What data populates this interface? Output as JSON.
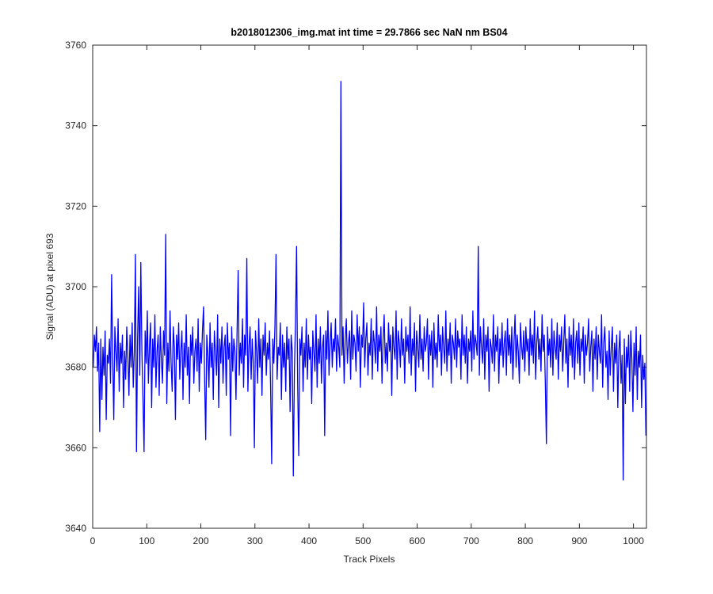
{
  "chart_data": {
    "type": "line",
    "title": "b2018012306_img.mat int time = 29.7866 sec  NaN nm BS04",
    "x_label": "Track Pixels",
    "y_label": "Signal (ADU) at pixel 693",
    "xlim": [
      0,
      1024
    ],
    "ylim": [
      3640,
      3760
    ],
    "xticks": [
      0,
      100,
      200,
      300,
      400,
      500,
      600,
      700,
      800,
      900,
      1000
    ],
    "yticks": [
      3640,
      3660,
      3680,
      3700,
      3720,
      3740,
      3760
    ],
    "grid": false,
    "x": [
      1,
      3,
      5,
      7,
      9,
      11,
      13,
      15,
      17,
      19,
      21,
      23,
      25,
      27,
      29,
      31,
      33,
      35,
      37,
      39,
      41,
      43,
      45,
      47,
      49,
      51,
      53,
      55,
      57,
      59,
      61,
      63,
      65,
      67,
      69,
      71,
      73,
      75,
      77,
      79,
      81,
      83,
      85,
      87,
      89,
      91,
      93,
      95,
      97,
      99,
      101,
      103,
      105,
      107,
      109,
      111,
      113,
      115,
      117,
      119,
      121,
      123,
      125,
      127,
      129,
      131,
      133,
      135,
      137,
      139,
      141,
      143,
      145,
      147,
      149,
      151,
      153,
      155,
      157,
      159,
      161,
      163,
      165,
      167,
      169,
      171,
      173,
      175,
      177,
      179,
      181,
      183,
      185,
      187,
      189,
      191,
      193,
      195,
      197,
      199,
      201,
      203,
      205,
      207,
      209,
      211,
      213,
      215,
      217,
      219,
      221,
      223,
      225,
      227,
      229,
      231,
      233,
      235,
      237,
      239,
      241,
      243,
      245,
      247,
      249,
      251,
      253,
      255,
      257,
      259,
      261,
      263,
      265,
      267,
      269,
      271,
      273,
      275,
      277,
      279,
      281,
      283,
      285,
      287,
      289,
      291,
      293,
      295,
      297,
      299,
      301,
      303,
      305,
      307,
      309,
      311,
      313,
      315,
      317,
      319,
      321,
      323,
      325,
      327,
      329,
      331,
      333,
      335,
      337,
      339,
      341,
      343,
      345,
      347,
      349,
      351,
      353,
      355,
      357,
      359,
      361,
      363,
      365,
      367,
      369,
      371,
      373,
      375,
      377,
      379,
      381,
      383,
      385,
      387,
      389,
      391,
      393,
      395,
      397,
      399,
      401,
      403,
      405,
      407,
      409,
      411,
      413,
      415,
      417,
      419,
      421,
      423,
      425,
      427,
      429,
      431,
      433,
      435,
      437,
      439,
      441,
      443,
      445,
      447,
      449,
      451,
      453,
      455,
      457,
      459,
      461,
      463,
      465,
      467,
      469,
      471,
      473,
      475,
      477,
      479,
      481,
      483,
      485,
      487,
      489,
      491,
      493,
      495,
      497,
      499,
      501,
      503,
      505,
      507,
      509,
      511,
      513,
      515,
      517,
      519,
      521,
      523,
      525,
      527,
      529,
      531,
      533,
      535,
      537,
      539,
      541,
      543,
      545,
      547,
      549,
      551,
      553,
      555,
      557,
      559,
      561,
      563,
      565,
      567,
      569,
      571,
      573,
      575,
      577,
      579,
      581,
      583,
      585,
      587,
      589,
      591,
      593,
      595,
      597,
      599,
      601,
      603,
      605,
      607,
      609,
      611,
      613,
      615,
      617,
      619,
      621,
      623,
      625,
      627,
      629,
      631,
      633,
      635,
      637,
      639,
      641,
      643,
      645,
      647,
      649,
      651,
      653,
      655,
      657,
      659,
      661,
      663,
      665,
      667,
      669,
      671,
      673,
      675,
      677,
      679,
      681,
      683,
      685,
      687,
      689,
      691,
      693,
      695,
      697,
      699,
      701,
      703,
      705,
      707,
      709,
      711,
      713,
      715,
      717,
      719,
      721,
      723,
      725,
      727,
      729,
      731,
      733,
      735,
      737,
      739,
      741,
      743,
      745,
      747,
      749,
      751,
      753,
      755,
      757,
      759,
      761,
      763,
      765,
      767,
      769,
      771,
      773,
      775,
      777,
      779,
      781,
      783,
      785,
      787,
      789,
      791,
      793,
      795,
      797,
      799,
      801,
      803,
      805,
      807,
      809,
      811,
      813,
      815,
      817,
      819,
      821,
      823,
      825,
      827,
      829,
      831,
      833,
      835,
      837,
      839,
      841,
      843,
      845,
      847,
      849,
      851,
      853,
      855,
      857,
      859,
      861,
      863,
      865,
      867,
      869,
      871,
      873,
      875,
      877,
      879,
      881,
      883,
      885,
      887,
      889,
      891,
      893,
      895,
      897,
      899,
      901,
      903,
      905,
      907,
      909,
      911,
      913,
      915,
      917,
      919,
      921,
      923,
      925,
      927,
      929,
      931,
      933,
      935,
      937,
      939,
      941,
      943,
      945,
      947,
      949,
      951,
      953,
      955,
      957,
      959,
      961,
      963,
      965,
      967,
      969,
      971,
      973,
      975,
      977,
      979,
      981,
      983,
      985,
      987,
      989,
      991,
      993,
      995,
      997,
      999,
      1001,
      1003,
      1005,
      1007,
      1009,
      1011,
      1013,
      1015,
      1017,
      1019,
      1021,
      1023
    ],
    "series": [
      {
        "color": "#0000ff",
        "values": [
          3680,
          3688,
          3684,
          3690,
          3679,
          3686,
          3664,
          3687,
          3672,
          3685,
          3678,
          3689,
          3667,
          3683,
          3681,
          3687,
          3676,
          3703,
          3682,
          3667,
          3690,
          3684,
          3679,
          3692,
          3674,
          3686,
          3681,
          3688,
          3670,
          3684,
          3677,
          3690,
          3683,
          3673,
          3688,
          3680,
          3691,
          3675,
          3684,
          3708,
          3659,
          3687,
          3700,
          3678,
          3706,
          3684,
          3672,
          3659,
          3689,
          3681,
          3694,
          3676,
          3685,
          3691,
          3670,
          3687,
          3680,
          3693,
          3675,
          3684,
          3688,
          3673,
          3690,
          3682,
          3676,
          3689,
          3683,
          3713,
          3671,
          3686,
          3679,
          3694,
          3681,
          3674,
          3690,
          3685,
          3667,
          3688,
          3682,
          3691,
          3677,
          3684,
          3689,
          3672,
          3686,
          3680,
          3693,
          3678,
          3685,
          3671,
          3688,
          3683,
          3690,
          3676,
          3684,
          3687,
          3679,
          3692,
          3674,
          3686,
          3681,
          3689,
          3695,
          3677,
          3662,
          3688,
          3683,
          3675,
          3691,
          3680,
          3686,
          3672,
          3689,
          3684,
          3678,
          3693,
          3670,
          3687,
          3681,
          3690,
          3676,
          3685,
          3688,
          3673,
          3691,
          3682,
          3686,
          3663,
          3690,
          3679,
          3687,
          3684,
          3672,
          3689,
          3704,
          3678,
          3686,
          3681,
          3692,
          3675,
          3688,
          3683,
          3707,
          3674,
          3685,
          3690,
          3677,
          3687,
          3681,
          3660,
          3689,
          3684,
          3676,
          3692,
          3680,
          3687,
          3673,
          3688,
          3683,
          3691,
          3678,
          3686,
          3682,
          3689,
          3675,
          3656,
          3687,
          3681,
          3690,
          3708,
          3677,
          3685,
          3683,
          3691,
          3672,
          3688,
          3680,
          3686,
          3674,
          3690,
          3682,
          3687,
          3669,
          3688,
          3684,
          3653,
          3679,
          3691,
          3710,
          3676,
          3658,
          3687,
          3683,
          3690,
          3674,
          3686,
          3680,
          3692,
          3677,
          3688,
          3682,
          3685,
          3671,
          3689,
          3684,
          3679,
          3693,
          3675,
          3687,
          3681,
          3690,
          3676,
          3685,
          3688,
          3663,
          3689,
          3682,
          3694,
          3678,
          3686,
          3691,
          3680,
          3687,
          3684,
          3692,
          3679,
          3688,
          3685,
          3680,
          3751,
          3683,
          3690,
          3676,
          3687,
          3692,
          3681,
          3686,
          3689,
          3677,
          3694,
          3682,
          3688,
          3686,
          3679,
          3693,
          3684,
          3690,
          3675,
          3688,
          3685,
          3696,
          3680,
          3687,
          3691,
          3678,
          3686,
          3683,
          3692,
          3677,
          3689,
          3686,
          3681,
          3695,
          3679,
          3688,
          3684,
          3690,
          3676,
          3687,
          3693,
          3681,
          3686,
          3679,
          3691,
          3684,
          3688,
          3673,
          3690,
          3685,
          3682,
          3694,
          3677,
          3689,
          3686,
          3680,
          3692,
          3683,
          3687,
          3676,
          3690,
          3684,
          3688,
          3681,
          3695,
          3678,
          3687,
          3683,
          3691,
          3674,
          3689,
          3685,
          3680,
          3693,
          3682,
          3687,
          3679,
          3690,
          3684,
          3686,
          3692,
          3677,
          3688,
          3683,
          3689,
          3675,
          3691,
          3682,
          3686,
          3680,
          3693,
          3684,
          3688,
          3678,
          3690,
          3685,
          3681,
          3694,
          3679,
          3687,
          3683,
          3691,
          3676,
          3688,
          3686,
          3682,
          3692,
          3680,
          3689,
          3685,
          3687,
          3677,
          3693,
          3683,
          3688,
          3681,
          3690,
          3676,
          3687,
          3684,
          3689,
          3679,
          3694,
          3682,
          3688,
          3686,
          3683,
          3710,
          3678,
          3690,
          3685,
          3681,
          3692,
          3677,
          3688,
          3684,
          3690,
          3674,
          3687,
          3685,
          3681,
          3693,
          3679,
          3688,
          3684,
          3690,
          3676,
          3687,
          3683,
          3691,
          3680,
          3686,
          3689,
          3678,
          3692,
          3683,
          3688,
          3681,
          3690,
          3677,
          3686,
          3693,
          3680,
          3688,
          3684,
          3676,
          3691,
          3685,
          3682,
          3689,
          3679,
          3690,
          3684,
          3687,
          3678,
          3692,
          3683,
          3688,
          3681,
          3694,
          3677,
          3686,
          3690,
          3682,
          3687,
          3679,
          3693,
          3684,
          3688,
          3676,
          3661,
          3690,
          3683,
          3687,
          3680,
          3692,
          3678,
          3689,
          3685,
          3682,
          3691,
          3677,
          3688,
          3684,
          3690,
          3679,
          3686,
          3693,
          3681,
          3687,
          3675,
          3690,
          3683,
          3688,
          3680,
          3692,
          3677,
          3686,
          3689,
          3681,
          3691,
          3678,
          3687,
          3684,
          3690,
          3676,
          3688,
          3683,
          3686,
          3692,
          3679,
          3685,
          3689,
          3674,
          3687,
          3682,
          3690,
          3677,
          3688,
          3684,
          3681,
          3693,
          3675,
          3686,
          3690,
          3680,
          3684,
          3672,
          3689,
          3678,
          3685,
          3690,
          3674,
          3686,
          3681,
          3688,
          3670,
          3684,
          3689,
          3676,
          3683,
          3652,
          3687,
          3671,
          3685,
          3680,
          3688,
          3674,
          3689,
          3682,
          3669,
          3686,
          3678,
          3690,
          3672,
          3684,
          3680,
          3688,
          3670,
          3683,
          3677,
          3681,
          3663
        ]
      }
    ]
  }
}
